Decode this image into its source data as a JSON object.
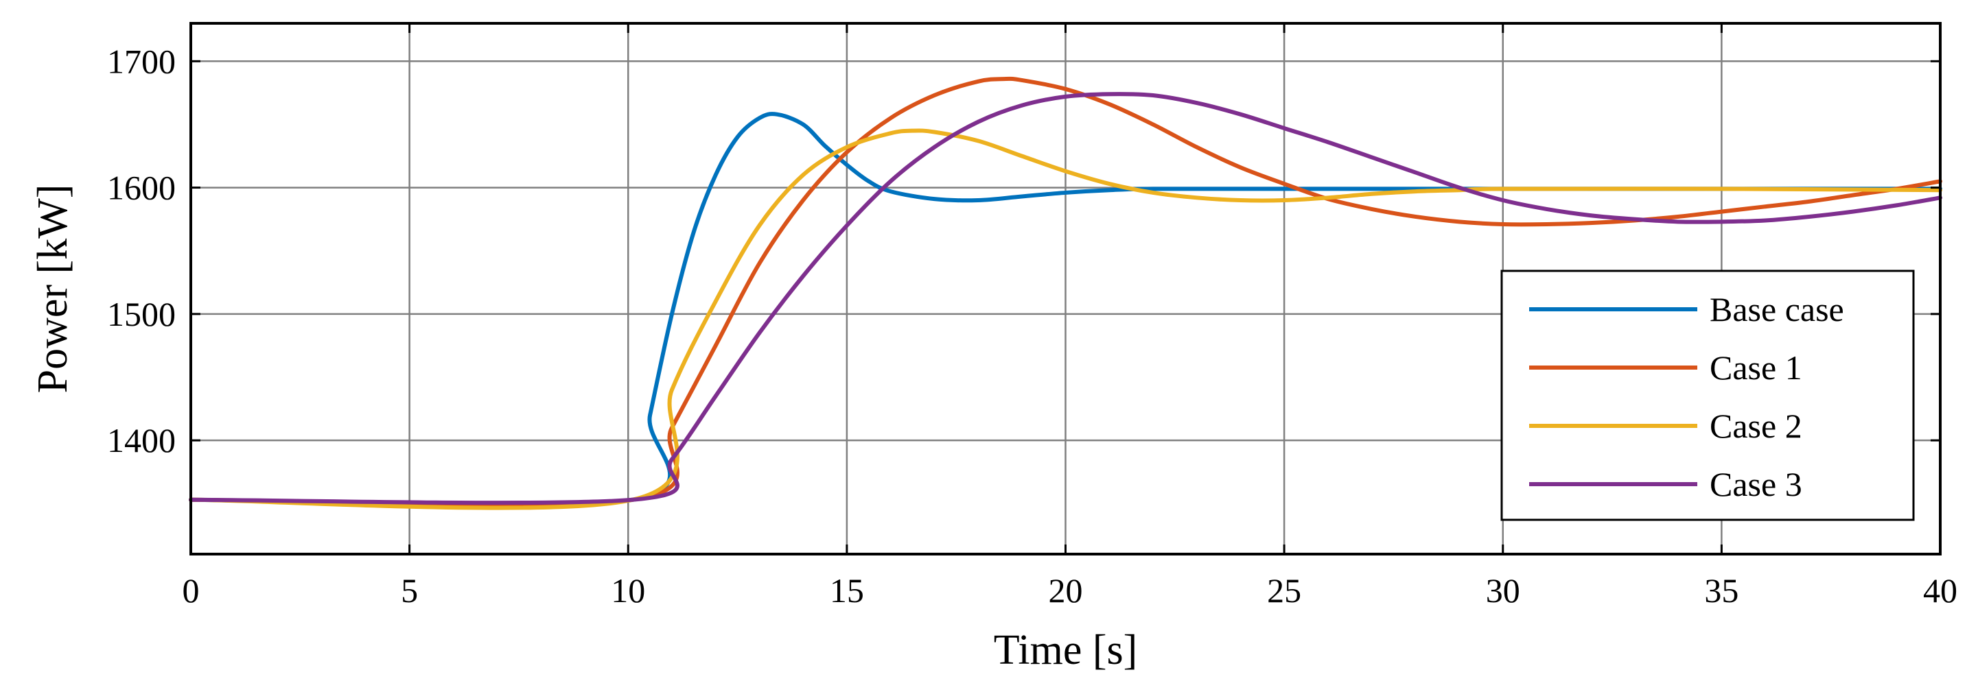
{
  "chart_data": {
    "type": "line",
    "title": "",
    "xlabel": "Time [s]",
    "ylabel": "Power [kW]",
    "xlim": [
      0,
      40
    ],
    "ylim": [
      1310,
      1730
    ],
    "xticks": [
      0,
      5,
      10,
      15,
      20,
      25,
      30,
      35,
      40
    ],
    "yticks": [
      1400,
      1500,
      1600,
      1700
    ],
    "grid": true,
    "legend_position": "bottom-right",
    "series": [
      {
        "name": "Base case",
        "color": "#0072BD",
        "points": [
          [
            0,
            1353
          ],
          [
            10.1,
            1353
          ],
          [
            10.5,
            1420
          ],
          [
            11,
            1500
          ],
          [
            11.5,
            1565
          ],
          [
            12,
            1610
          ],
          [
            12.5,
            1640
          ],
          [
            13,
            1655
          ],
          [
            13.4,
            1658
          ],
          [
            14,
            1650
          ],
          [
            14.5,
            1633
          ],
          [
            15,
            1618
          ],
          [
            15.5,
            1605
          ],
          [
            16,
            1597
          ],
          [
            17,
            1591
          ],
          [
            18,
            1590
          ],
          [
            19,
            1593
          ],
          [
            20,
            1596
          ],
          [
            21,
            1598
          ],
          [
            22,
            1599
          ],
          [
            25,
            1599
          ],
          [
            30,
            1599
          ],
          [
            35,
            1599
          ],
          [
            40,
            1599
          ]
        ]
      },
      {
        "name": "Case 1",
        "color": "#D95319",
        "points": [
          [
            0,
            1353
          ],
          [
            10.1,
            1353
          ],
          [
            11,
            1410
          ],
          [
            12,
            1475
          ],
          [
            13,
            1540
          ],
          [
            14,
            1590
          ],
          [
            15,
            1628
          ],
          [
            16,
            1655
          ],
          [
            17,
            1673
          ],
          [
            18,
            1684
          ],
          [
            18.6,
            1686
          ],
          [
            19,
            1685
          ],
          [
            20,
            1678
          ],
          [
            21,
            1666
          ],
          [
            22,
            1650
          ],
          [
            23,
            1632
          ],
          [
            24,
            1616
          ],
          [
            25,
            1603
          ],
          [
            26,
            1591
          ],
          [
            27,
            1583
          ],
          [
            28,
            1577
          ],
          [
            29,
            1573
          ],
          [
            30,
            1571
          ],
          [
            31,
            1571
          ],
          [
            32,
            1572
          ],
          [
            33,
            1574
          ],
          [
            34,
            1577
          ],
          [
            35,
            1581
          ],
          [
            36,
            1585
          ],
          [
            37,
            1589
          ],
          [
            38,
            1594
          ],
          [
            39,
            1599
          ],
          [
            40,
            1605
          ]
        ]
      },
      {
        "name": "Case 2",
        "color": "#EDB120",
        "points": [
          [
            0,
            1353
          ],
          [
            10.1,
            1353
          ],
          [
            11,
            1440
          ],
          [
            12,
            1510
          ],
          [
            13,
            1570
          ],
          [
            14,
            1610
          ],
          [
            15,
            1632
          ],
          [
            16,
            1643
          ],
          [
            16.5,
            1645
          ],
          [
            17,
            1644
          ],
          [
            18,
            1637
          ],
          [
            19,
            1625
          ],
          [
            20,
            1613
          ],
          [
            21,
            1603
          ],
          [
            22,
            1596
          ],
          [
            23,
            1592
          ],
          [
            24,
            1590
          ],
          [
            25,
            1590
          ],
          [
            26,
            1592
          ],
          [
            27,
            1595
          ],
          [
            28,
            1597
          ],
          [
            29,
            1598
          ],
          [
            30,
            1599
          ],
          [
            35,
            1599
          ],
          [
            40,
            1598
          ]
        ]
      },
      {
        "name": "Case 3",
        "color": "#7E2F8E",
        "points": [
          [
            0,
            1353
          ],
          [
            10.1,
            1353
          ],
          [
            11,
            1385
          ],
          [
            12,
            1435
          ],
          [
            13,
            1485
          ],
          [
            14,
            1530
          ],
          [
            15,
            1570
          ],
          [
            16,
            1605
          ],
          [
            17,
            1632
          ],
          [
            18,
            1652
          ],
          [
            19,
            1665
          ],
          [
            20,
            1672
          ],
          [
            21,
            1674
          ],
          [
            22,
            1673
          ],
          [
            23,
            1667
          ],
          [
            24,
            1658
          ],
          [
            25,
            1647
          ],
          [
            26,
            1636
          ],
          [
            27,
            1624
          ],
          [
            28,
            1612
          ],
          [
            29,
            1600
          ],
          [
            30,
            1590
          ],
          [
            31,
            1583
          ],
          [
            32,
            1578
          ],
          [
            33,
            1575
          ],
          [
            34,
            1573
          ],
          [
            35,
            1573
          ],
          [
            36,
            1574
          ],
          [
            37,
            1577
          ],
          [
            38,
            1581
          ],
          [
            39,
            1586
          ],
          [
            40,
            1592
          ]
        ]
      }
    ]
  }
}
